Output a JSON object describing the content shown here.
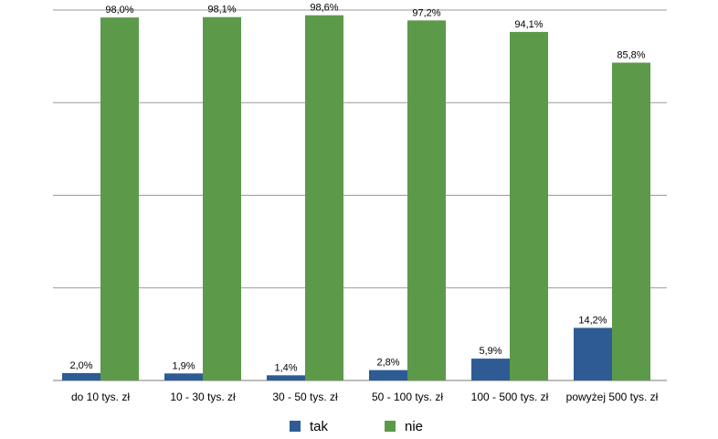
{
  "chart_data": {
    "type": "bar",
    "categories": [
      "do 10 tys. zł",
      "10 - 30 tys. zł",
      "30 - 50 tys. zł",
      "50 - 100 tys. zł",
      "100 - 500 tys. zł",
      "powyżej 500 tys. zł"
    ],
    "series": [
      {
        "name": "tak",
        "color": "#2e5b94",
        "values": [
          2.0,
          1.9,
          1.4,
          2.8,
          5.9,
          14.2
        ],
        "labels": [
          "2,0%",
          "1,9%",
          "1,4%",
          "2,8%",
          "5,9%",
          "14,2%"
        ]
      },
      {
        "name": "nie",
        "color": "#5c9a4a",
        "values": [
          98.0,
          98.1,
          98.6,
          97.2,
          94.1,
          85.8
        ],
        "labels": [
          "98,0%",
          "98,1%",
          "98,6%",
          "97,2%",
          "94,1%",
          "85,8%"
        ]
      }
    ],
    "ylim": [
      0,
      100
    ],
    "grid": true,
    "legend_position": "bottom"
  }
}
